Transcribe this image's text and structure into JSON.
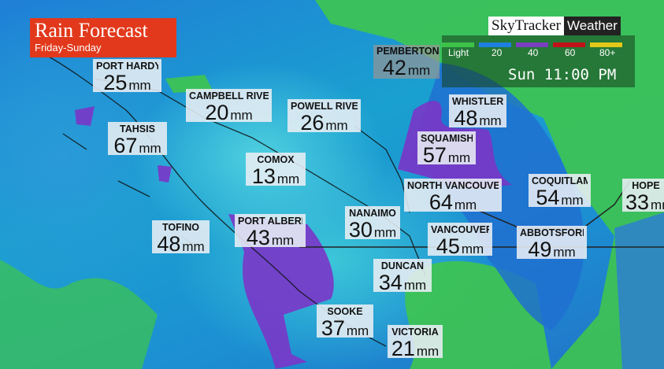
{
  "header": {
    "title": "Rain Forecast",
    "subtitle": "Friday-Sunday"
  },
  "brand": {
    "part1": "SkyTracker",
    "part2": "Weather"
  },
  "legend": {
    "items": [
      {
        "label": "Light",
        "color": "#3fc24a"
      },
      {
        "label": "20",
        "color": "#1e7fe0"
      },
      {
        "label": "40",
        "color": "#7a3fc0"
      },
      {
        "label": "60",
        "color": "#c0121a"
      },
      {
        "label": "80+",
        "color": "#e4c81a"
      }
    ]
  },
  "timestamp": "Sun 11:00 PM",
  "pemberton": {
    "name": "PEMBERTON",
    "value": "42",
    "unit": "mm"
  },
  "locations": [
    {
      "name": "PORT HARDY",
      "value": "25",
      "unit": "mm"
    },
    {
      "name": "CAMPBELL RIVER",
      "value": "20",
      "unit": "mm"
    },
    {
      "name": "POWELL RIVER",
      "value": "26",
      "unit": "mm"
    },
    {
      "name": "TAHSIS",
      "value": "67",
      "unit": "mm"
    },
    {
      "name": "COMOX",
      "value": "13",
      "unit": "mm"
    },
    {
      "name": "WHISTLER",
      "value": "48",
      "unit": "mm"
    },
    {
      "name": "SQUAMISH",
      "value": "57",
      "unit": "mm"
    },
    {
      "name": "NORTH VANCOUVER",
      "value": "64",
      "unit": "mm"
    },
    {
      "name": "COQUITLAM",
      "value": "54",
      "unit": "mm"
    },
    {
      "name": "HOPE",
      "value": "33",
      "unit": "mm"
    },
    {
      "name": "TOFINO",
      "value": "48",
      "unit": "mm"
    },
    {
      "name": "PORT ALBERNI",
      "value": "43",
      "unit": "mm"
    },
    {
      "name": "NANAIMO",
      "value": "30",
      "unit": "mm"
    },
    {
      "name": "VANCOUVER",
      "value": "45",
      "unit": "mm"
    },
    {
      "name": "ABBOTSFORD",
      "value": "49",
      "unit": "mm"
    },
    {
      "name": "DUNCAN",
      "value": "34",
      "unit": "mm"
    },
    {
      "name": "SOOKE",
      "value": "37",
      "unit": "mm"
    },
    {
      "name": "VICTORIA",
      "value": "21",
      "unit": "mm"
    }
  ]
}
